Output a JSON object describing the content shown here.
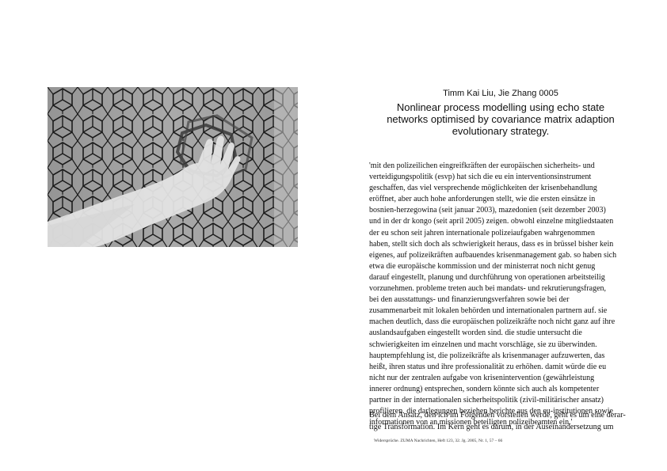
{
  "image": {
    "description_name": "photo-hand-touching-geometric-tiled-wall"
  },
  "header": {
    "authors": "Timm Kai Liu, Jie Zhang 0005",
    "title_lines": [
      "Nonlinear process modelling using echo state",
      "networks optimised by covariance matrix adaption",
      "evolutionary strategy."
    ]
  },
  "abstract_lines": [
    "'mit den polizeilichen eingreifkräften der europäischen sicherheits- und",
    "verteidigungspolitik (esvp) hat sich die eu ein interventionsinstrument",
    "geschaffen, das viel versprechende möglichkeiten der krisenbehandlung",
    "eröffnet, aber auch hohe anforderungen stellt, wie die ersten einsätze in",
    "bosnien-herzegowina (seit januar 2003), mazedonien (seit dezember 2003)",
    "und in der dr kongo (seit april 2005) zeigen. obwohl einzelne mitgliedstaaten",
    "der eu schon seit jahren internationale polizeiaufgaben wahrgenommen",
    "haben, stellt sich doch als schwierigkeit heraus, dass es in brüssel bisher kein",
    "eigenes, auf polizeikräften aufbauendes krisenmanagement gab. so haben sich",
    "etwa die europäische kommission und der ministerrat noch nicht genug",
    "darauf eingestellt, planung und durchführung von operationen arbeitsteilig",
    "vorzunehmen. probleme treten auch bei mandats- und rekrutierungsfragen,",
    "bei den ausstattungs- und finanzierungsverfahren sowie bei der",
    "zusammenarbeit mit lokalen behörden und internationalen partnern auf. sie",
    "machen deutlich, dass die europäischen polizeikräfte noch nicht ganz auf ihre",
    "auslandsaufgaben eingestellt worden sind. die studie untersucht die",
    "schwierigkeiten im einzelnen und macht vorschläge, sie zu überwinden.",
    "hauptempfehlung ist, die polizeikräfte als krisenmanager aufzuwerten, das",
    "heißt, ihren status und ihre professionalität zu erhöhen. damit würde die eu",
    "nicht nur der zentralen aufgabe von krisenintervention (gewährleistung",
    "innerer ordnung) entsprechen, sondern könnte sich auch als kompetenter",
    "partner in der internationalen sicherheitspolitik (zivil-militärischer ansatz)",
    "profilieren. die darlegungen beziehen berichte aus den eu-institutionen sowie",
    "informationen von an missionen beteiligten polizeibeamten ein.'"
  ],
  "body_lines": [
    "Bei dem Ansatz, den ich im Folgenden vorstellen werde, geht es um eine derar-",
    "tige Transformation. Im Kern geht es darum, in der Auseinandersetzung um"
  ],
  "footer": "Widersprüche. ZUMA Nachrichten, Heft 123, 32. Jg. 2005, Nr. 1, 57 – 66"
}
